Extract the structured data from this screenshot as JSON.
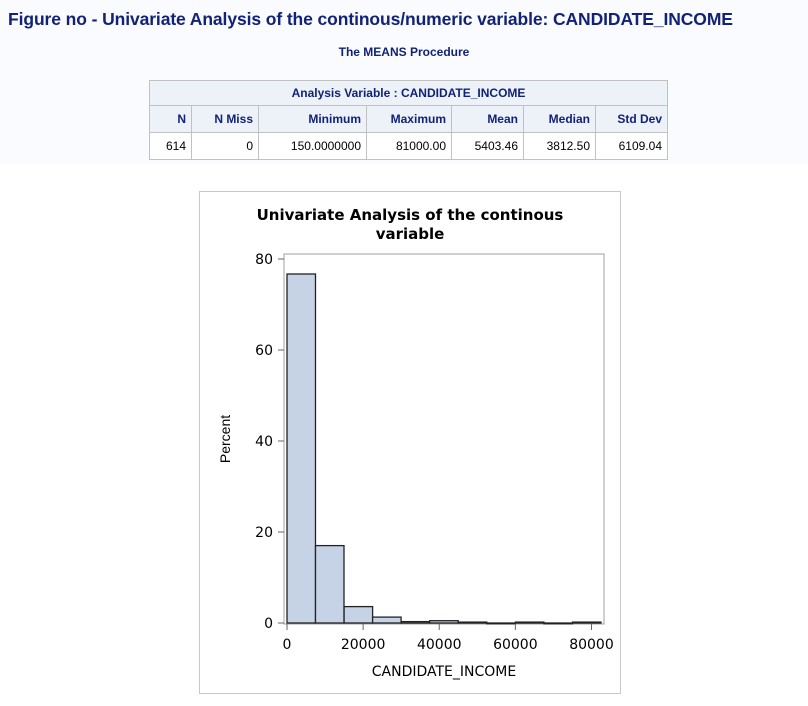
{
  "figure_title": "Figure no - Univariate Analysis of the continous/numeric variable: CANDIDATE_INCOME",
  "procedure_title": "The MEANS Procedure",
  "stats_table": {
    "caption": "Analysis Variable : CANDIDATE_INCOME",
    "headers": [
      "N",
      "N Miss",
      "Minimum",
      "Maximum",
      "Mean",
      "Median",
      "Std Dev"
    ],
    "row": [
      "614",
      "0",
      "150.0000000",
      "81000.00",
      "5403.46",
      "3812.50",
      "6109.04"
    ]
  },
  "chart_data": {
    "type": "bar",
    "title": "Univariate Analysis of the continous variable",
    "title_lines": [
      "Univariate Analysis of the continous",
      "variable"
    ],
    "xlabel": "CANDIDATE_INCOME",
    "ylabel": "Percent",
    "bin_width": 7500,
    "bins": [
      {
        "x0": 0,
        "x1": 7500,
        "percent": 76.7
      },
      {
        "x0": 7500,
        "x1": 15000,
        "percent": 17.0
      },
      {
        "x0": 15000,
        "x1": 22500,
        "percent": 3.6
      },
      {
        "x0": 22500,
        "x1": 30000,
        "percent": 1.3
      },
      {
        "x0": 30000,
        "x1": 37500,
        "percent": 0.3
      },
      {
        "x0": 37500,
        "x1": 45000,
        "percent": 0.5
      },
      {
        "x0": 45000,
        "x1": 52500,
        "percent": 0.2
      },
      {
        "x0": 52500,
        "x1": 60000,
        "percent": 0.0
      },
      {
        "x0": 60000,
        "x1": 67500,
        "percent": 0.2
      },
      {
        "x0": 67500,
        "x1": 75000,
        "percent": 0.0
      },
      {
        "x0": 75000,
        "x1": 82500,
        "percent": 0.2
      }
    ],
    "xticks": [
      0,
      20000,
      40000,
      60000,
      80000
    ],
    "yticks": [
      0,
      20,
      40,
      60,
      80
    ],
    "xlim": [
      0,
      82500
    ],
    "ylim": [
      0,
      80
    ],
    "colors": {
      "bar_fill": "#c6d3e6",
      "bar_stroke": "#222222"
    },
    "grid": false,
    "legend": "none"
  }
}
